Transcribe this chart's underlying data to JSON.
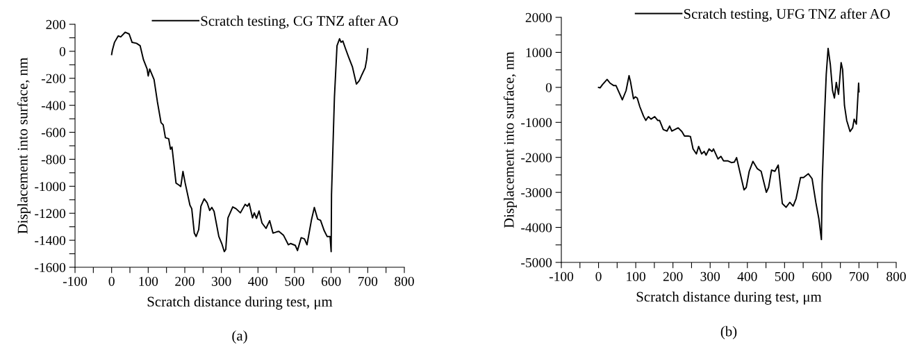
{
  "chart_data": [
    {
      "type": "line",
      "xlabel": "Scratch distance during test, μm",
      "ylabel": "Displacement into surface, nm",
      "annotations": [
        "(a)"
      ],
      "xlim": [
        -100,
        800
      ],
      "ylim": [
        -1600,
        200
      ],
      "xticks": [
        -100,
        {
          "value": -50,
          "label": null
        },
        0,
        {
          "value": 50,
          "label": null
        },
        100,
        {
          "value": 150,
          "label": null
        },
        200,
        {
          "value": 250,
          "label": null
        },
        300,
        {
          "value": 350,
          "label": null
        },
        400,
        {
          "value": 450,
          "label": null
        },
        500,
        {
          "value": 550,
          "label": null
        },
        600,
        {
          "value": 650,
          "label": null
        },
        700,
        {
          "value": 750,
          "label": null
        },
        800
      ],
      "yticks": [
        -1600,
        {
          "value": -1500,
          "label": null
        },
        -1400,
        {
          "value": -1300,
          "label": null
        },
        -1200,
        {
          "value": -1100,
          "label": null
        },
        -1000,
        {
          "value": -900,
          "label": null
        },
        -800,
        {
          "value": -700,
          "label": null
        },
        -600,
        {
          "value": -500,
          "label": null
        },
        -400,
        {
          "value": -300,
          "label": null
        },
        -200,
        {
          "value": -100,
          "label": null
        },
        0,
        {
          "value": 100,
          "label": null
        },
        200
      ],
      "grid": false,
      "legend": "top right",
      "marker": "none",
      "line_style": "solid",
      "series": [
        {
          "name": "Scratch testing, CG TNZ after AO",
          "color": "#000000",
          "x": [
            0,
            2,
            8,
            18,
            25,
            37,
            48,
            56,
            68,
            78,
            87,
            97,
            100,
            104,
            116,
            125,
            135,
            141,
            147,
            156,
            161,
            165,
            176,
            185,
            189,
            195,
            201,
            214,
            219,
            226,
            231,
            238,
            244,
            253,
            261,
            268,
            274,
            280,
            293,
            301,
            308,
            312,
            318,
            331,
            340,
            352,
            365,
            371,
            376,
            385,
            390,
            396,
            403,
            411,
            422,
            432,
            441,
            451,
            457,
            470,
            483,
            489,
            502,
            508,
            518,
            527,
            534,
            546,
            554,
            563,
            571,
            581,
            589,
            597,
            600,
            601,
            609,
            616,
            623,
            627,
            632,
            639,
            648,
            658,
            669,
            677,
            684,
            693,
            697,
            700
          ],
          "values": [
            -24,
            7,
            67,
            114,
            107,
            141,
            128,
            66,
            59,
            41,
            -62,
            -131,
            -183,
            -131,
            -209,
            -372,
            -528,
            -545,
            -640,
            -648,
            -726,
            -709,
            -976,
            -993,
            -1002,
            -890,
            -976,
            -1140,
            -1166,
            -1347,
            -1372,
            -1321,
            -1148,
            -1093,
            -1122,
            -1179,
            -1157,
            -1186,
            -1372,
            -1424,
            -1484,
            -1467,
            -1234,
            -1153,
            -1166,
            -1197,
            -1134,
            -1148,
            -1127,
            -1234,
            -1197,
            -1238,
            -1183,
            -1272,
            -1312,
            -1255,
            -1347,
            -1338,
            -1334,
            -1364,
            -1433,
            -1424,
            -1438,
            -1476,
            -1381,
            -1390,
            -1433,
            -1252,
            -1157,
            -1243,
            -1252,
            -1329,
            -1372,
            -1372,
            -1484,
            -1062,
            -338,
            41,
            93,
            67,
            76,
            21,
            -45,
            -114,
            -243,
            -217,
            -174,
            -122,
            -62,
            19
          ]
        }
      ]
    },
    {
      "type": "line",
      "xlabel": "Scratch distance during test, μm",
      "ylabel": "Displacement into surface, nm",
      "annotations": [
        "(b)"
      ],
      "xlim": [
        -100,
        800
      ],
      "ylim": [
        -5000,
        2000
      ],
      "xticks": [
        -100,
        {
          "value": -50,
          "label": null
        },
        0,
        {
          "value": 50,
          "label": null
        },
        100,
        {
          "value": 150,
          "label": null
        },
        200,
        {
          "value": 250,
          "label": null
        },
        300,
        {
          "value": 350,
          "label": null
        },
        400,
        {
          "value": 450,
          "label": null
        },
        500,
        {
          "value": 550,
          "label": null
        },
        600,
        {
          "value": 650,
          "label": null
        },
        700,
        {
          "value": 750,
          "label": null
        },
        800
      ],
      "yticks": [
        -5000,
        {
          "value": -4500,
          "label": null
        },
        -4000,
        {
          "value": -3500,
          "label": null
        },
        -3000,
        {
          "value": -2500,
          "label": null
        },
        -2000,
        {
          "value": -1500,
          "label": null
        },
        -1000,
        {
          "value": -500,
          "label": null
        },
        0,
        {
          "value": 500,
          "label": null
        },
        1000,
        {
          "value": 1500,
          "label": null
        },
        2000
      ],
      "grid": false,
      "legend": "top right",
      "marker": "none",
      "line_style": "solid",
      "series": [
        {
          "name": "Scratch testing, UFG TNZ after AO",
          "color": "#000000",
          "x": [
            0,
            4,
            11,
            23,
            31,
            41,
            47,
            56,
            64,
            74,
            82,
            86,
            94,
            99,
            104,
            111,
            121,
            127,
            134,
            141,
            151,
            159,
            164,
            174,
            184,
            191,
            197,
            205,
            214,
            224,
            231,
            241,
            247,
            254,
            263,
            269,
            277,
            284,
            289,
            297,
            305,
            309,
            321,
            329,
            336,
            347,
            357,
            365,
            371,
            381,
            391,
            397,
            405,
            415,
            427,
            437,
            451,
            457,
            465,
            474,
            483,
            494,
            504,
            514,
            523,
            531,
            543,
            551,
            564,
            574,
            584,
            592,
            599,
            601,
            607,
            612,
            617,
            623,
            629,
            634,
            639,
            645,
            652,
            656,
            661,
            667,
            676,
            683,
            687,
            693,
            699,
            700
          ],
          "values": [
            0,
            -14,
            85,
            227,
            121,
            50,
            50,
            -163,
            -355,
            -92,
            333,
            156,
            -326,
            -270,
            -305,
            -553,
            -823,
            -943,
            -837,
            -908,
            -837,
            -943,
            -943,
            -1206,
            -1248,
            -1106,
            -1248,
            -1206,
            -1156,
            -1262,
            -1390,
            -1390,
            -1404,
            -1759,
            -1901,
            -1688,
            -1901,
            -1830,
            -1936,
            -1759,
            -1830,
            -1759,
            -2043,
            -1972,
            -2099,
            -2099,
            -2149,
            -2135,
            -2007,
            -2468,
            -2929,
            -2858,
            -2397,
            -2113,
            -2326,
            -2397,
            -2999,
            -2858,
            -2362,
            -2397,
            -2220,
            -3319,
            -3426,
            -3284,
            -3390,
            -3177,
            -2574,
            -2574,
            -2468,
            -2610,
            -3284,
            -3745,
            -4348,
            -2752,
            -908,
            369,
            1113,
            652,
            -92,
            -305,
            142,
            -199,
            709,
            511,
            -518,
            -943,
            -1262,
            -1156,
            -908,
            -1050,
            121,
            -128
          ]
        }
      ]
    }
  ]
}
